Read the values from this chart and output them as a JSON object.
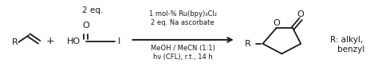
{
  "background_color": "#ffffff",
  "fig_width": 4.74,
  "fig_height": 0.94,
  "dpi": 100,
  "text_color": "#1a1a1a",
  "condition_line1": "1 mol-% Ru(bpy)₃Cl₂",
  "condition_line2": "2 eq. Na ascorbate",
  "condition_line3": "MeOH / MeCN (1:1)",
  "condition_line4": "hν (CFL), r.t., 14 h",
  "eq_label": "2 eq.",
  "r_label_reactant": "R",
  "plus_label": "+",
  "ho_label": "HO",
  "o_label": "O",
  "i_label": "I",
  "r_label_product": "R",
  "r_alkyl_label": "R: alkyl,",
  "benzyl_label": "benzyl"
}
